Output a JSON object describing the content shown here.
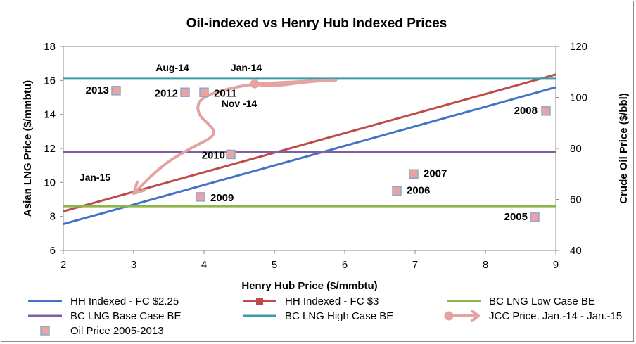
{
  "chart_data": {
    "type": "scatter",
    "title": "Oil-indexed vs Henry Hub Indexed Prices",
    "xlabel": "Henry Hub Price ($/mmbtu)",
    "ylabel": "Asian LNG Price ($/mmbtu)",
    "y2label": "Crude Oil Price ($/bbl)",
    "xlim": [
      2,
      9
    ],
    "ylim": [
      6,
      18
    ],
    "y2lim": [
      40,
      120
    ],
    "xticks": [
      2,
      3,
      4,
      5,
      6,
      7,
      8,
      9
    ],
    "yticks": [
      6,
      8,
      10,
      12,
      14,
      16,
      18
    ],
    "y2ticks": [
      40,
      60,
      80,
      100,
      120
    ],
    "grid": false,
    "legend_position": "bottom",
    "series": [
      {
        "name": "HH Indexed - FC $2.25",
        "kind": "line",
        "color": "#4472c4",
        "x": [
          2,
          9
        ],
        "y": [
          7.55,
          15.6
        ]
      },
      {
        "name": "HH Indexed - FC $3",
        "kind": "line",
        "color": "#be4b48",
        "x": [
          2,
          9
        ],
        "y": [
          8.3,
          16.35
        ]
      },
      {
        "name": "BC LNG Low Case BE",
        "kind": "hline",
        "color": "#8db54a",
        "y": 8.6
      },
      {
        "name": "BC LNG Base Case BE",
        "kind": "hline",
        "color": "#7d5fa2",
        "y": 11.8
      },
      {
        "name": "BC LNG High Case BE",
        "kind": "hline",
        "color": "#3a9bab",
        "y": 16.1
      },
      {
        "name": "JCC Price, Jan.-14 - Jan.-15",
        "kind": "path",
        "color": "#e3a3a1",
        "x": [
          4.72,
          4.9,
          5.5,
          6.0,
          5.5,
          4.9,
          4.55,
          4.15,
          3.95,
          3.9,
          3.95,
          4.05,
          4.15,
          4.12,
          3.8,
          3.4,
          3.0
        ],
        "y": [
          15.8,
          15.6,
          15.95,
          16.05,
          15.95,
          15.85,
          15.7,
          15.3,
          14.9,
          14.4,
          13.85,
          13.5,
          13.05,
          12.65,
          12.0,
          11.0,
          9.35
        ]
      },
      {
        "name": "Oil Price 2005-2013",
        "kind": "markers",
        "color": "#e8a3a3",
        "points": [
          {
            "label": "2005",
            "x": 8.7,
            "y": 7.95
          },
          {
            "label": "2006",
            "x": 6.74,
            "y": 9.5
          },
          {
            "label": "2007",
            "x": 6.98,
            "y": 10.5
          },
          {
            "label": "2008",
            "x": 8.86,
            "y": 14.2
          },
          {
            "label": "2009",
            "x": 3.95,
            "y": 9.15
          },
          {
            "label": "2010",
            "x": 4.38,
            "y": 11.65
          },
          {
            "label": "2011",
            "x": 4.0,
            "y": 15.3
          },
          {
            "label": "2012",
            "x": 3.73,
            "y": 15.3
          },
          {
            "label": "2013",
            "x": 2.75,
            "y": 15.4
          }
        ]
      }
    ],
    "annotations": [
      {
        "text": "Jan-14",
        "x": 4.6,
        "y": 16.55
      },
      {
        "text": "Aug-14",
        "x": 3.55,
        "y": 16.55
      },
      {
        "text": "Nov -14",
        "x": 4.5,
        "y": 14.45
      },
      {
        "text": "Jan-15",
        "x": 2.45,
        "y": 10.1
      }
    ]
  }
}
